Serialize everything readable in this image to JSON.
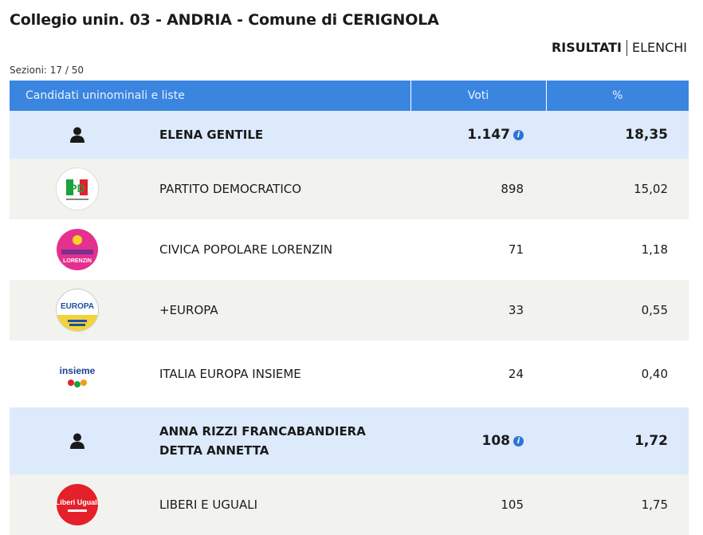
{
  "page": {
    "title": "Collegio unin. 03 - ANDRIA - Comune di CERIGNOLA",
    "tabs": {
      "active": "RISULTATI",
      "other": "ELENCHI"
    },
    "sezioni": "Sezioni: 17 / 50"
  },
  "table": {
    "headers": {
      "name": "Candidati uninominali e liste",
      "voti": "Voti",
      "perc": "%"
    },
    "rows": [
      {
        "kind": "candidate",
        "icon": "person-icon",
        "name": "ELENA GENTILE",
        "voti": "1.147",
        "perc": "18,35"
      },
      {
        "kind": "list",
        "icon": "pd-logo",
        "name": "PARTITO DEMOCRATICO",
        "voti": "898",
        "perc": "15,02"
      },
      {
        "kind": "list",
        "icon": "civica-popolare-logo",
        "name": "CIVICA POPOLARE LORENZIN",
        "voti": "71",
        "perc": "1,18"
      },
      {
        "kind": "list",
        "icon": "piu-europa-logo",
        "name": "+EUROPA",
        "voti": "33",
        "perc": "0,55"
      },
      {
        "kind": "list",
        "icon": "italia-europa-insieme-logo",
        "name": "ITALIA EUROPA INSIEME",
        "voti": "24",
        "perc": "0,40"
      },
      {
        "kind": "candidate",
        "icon": "person-icon",
        "name": "ANNA RIZZI FRANCABANDIERA DETTA ANNETTA",
        "voti": "108",
        "perc": "1,72"
      },
      {
        "kind": "list",
        "icon": "liberi-e-uguali-logo",
        "name": "LIBERI E UGUALI",
        "voti": "105",
        "perc": "1,75"
      }
    ]
  },
  "logo_text": {
    "pd": "PD",
    "civica": "LORENZIN",
    "europa": "EUROPA",
    "insieme": "insieme",
    "leu": "Liberi Uguali"
  },
  "colors": {
    "header": "#3a85e0",
    "candidate_row": "#dceafb",
    "list_row": "#f2f3ef",
    "info": "#2d74d6"
  }
}
